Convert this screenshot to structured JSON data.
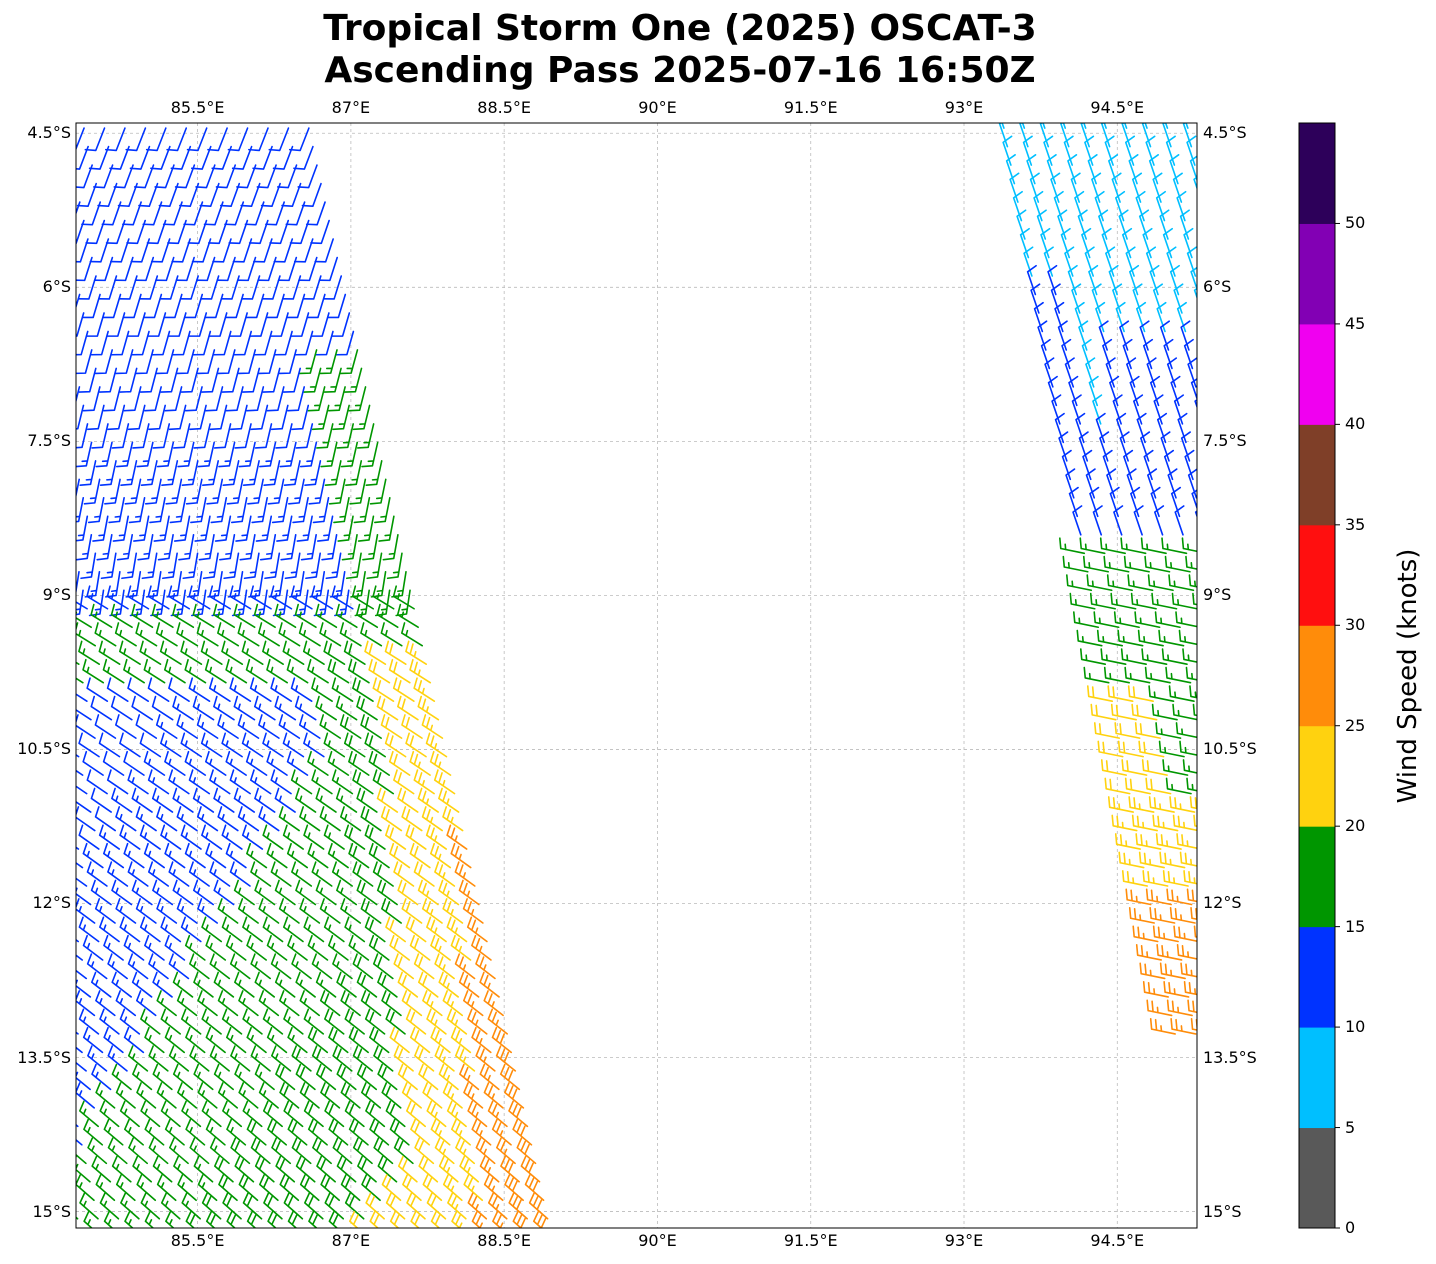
{
  "title": {
    "line1": "Tropical Storm One (2025) OSCAT-3",
    "line2": "Ascending Pass 2025-07-16 16:50Z"
  },
  "map": {
    "lon_range": [
      84.31,
      95.28
    ],
    "lat_range": [
      -15.16,
      -4.4
    ],
    "lon_ticks": [
      {
        "v": 85.5,
        "label": "85.5°E"
      },
      {
        "v": 87,
        "label": "87°E"
      },
      {
        "v": 88.5,
        "label": "88.5°E"
      },
      {
        "v": 90,
        "label": "90°E"
      },
      {
        "v": 91.5,
        "label": "91.5°E"
      },
      {
        "v": 93,
        "label": "93°E"
      },
      {
        "v": 94.5,
        "label": "94.5°E"
      }
    ],
    "lat_ticks": [
      {
        "v": -4.5,
        "label": "4.5°S"
      },
      {
        "v": -6,
        "label": "6°S"
      },
      {
        "v": -7.5,
        "label": "7.5°S"
      },
      {
        "v": -9,
        "label": "9°S"
      },
      {
        "v": -10.5,
        "label": "10.5°S"
      },
      {
        "v": -12,
        "label": "12°S"
      },
      {
        "v": -13.5,
        "label": "13.5°S"
      },
      {
        "v": -15,
        "label": "15°S"
      }
    ],
    "grid": true,
    "marks": "wind barbs"
  },
  "colorbar": {
    "label": "Wind Speed (knots)",
    "bounds": [
      0,
      5,
      10,
      15,
      20,
      25,
      30,
      35,
      40,
      45,
      50,
      55
    ],
    "ticks": [
      "0",
      "5",
      "10",
      "15",
      "20",
      "25",
      "30",
      "35",
      "40",
      "45",
      "50"
    ],
    "colors": [
      "#595959",
      "#00bfff",
      "#0033ff",
      "#009600",
      "#ffd20f",
      "#ff8c0a",
      "#ff0f0f",
      "#7f3f28",
      "#f000f0",
      "#8200b4",
      "#2d005a"
    ]
  }
}
